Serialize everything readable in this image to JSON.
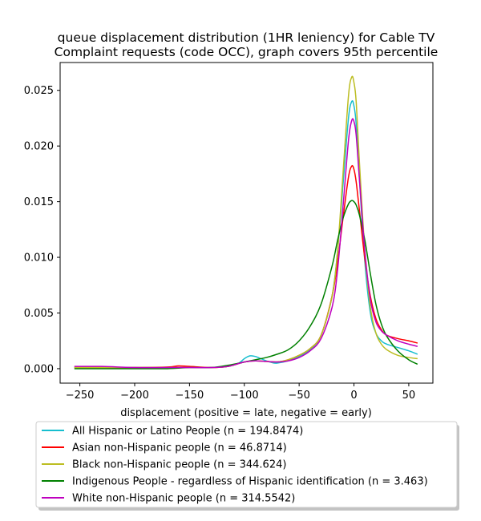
{
  "chart_data": {
    "type": "line",
    "title": [
      "queue displacement distribution (1HR leniency) for Cable TV",
      "Complaint  requests (code OCC), graph covers 95th percentile"
    ],
    "xlabel": "displacement (positive = late, negative = early)",
    "ylabel": "",
    "xlim": [
      -268,
      72
    ],
    "ylim": [
      -0.0013,
      0.0275
    ],
    "xticks": [
      -250,
      -200,
      -150,
      -100,
      -50,
      0,
      50
    ],
    "xtick_labels": [
      "−250",
      "−200",
      "−150",
      "−100",
      "−50",
      "0",
      "50"
    ],
    "yticks": [
      0.0,
      0.005,
      0.01,
      0.015,
      0.02,
      0.025
    ],
    "ytick_labels": [
      "0.000",
      "0.005",
      "0.010",
      "0.015",
      "0.020",
      "0.025"
    ],
    "grid": false,
    "legend_position": "below",
    "series": [
      {
        "name": "All Hispanic or Latino People (n = 194.8474)",
        "color": "#17becf",
        "x": [
          -255,
          -230,
          -200,
          -170,
          -150,
          -130,
          -115,
          -105,
          -100,
          -95,
          -90,
          -85,
          -80,
          -75,
          -70,
          -60,
          -50,
          -40,
          -30,
          -20,
          -15,
          -10,
          -5,
          -2,
          0,
          2,
          5,
          10,
          15,
          20,
          25,
          30,
          40,
          50,
          58
        ],
        "y": [
          0.0001,
          0.0001,
          0.0001,
          0.0001,
          0.0001,
          0.0001,
          0.0002,
          0.0005,
          0.0009,
          0.00115,
          0.0011,
          0.0009,
          0.0007,
          0.00055,
          0.0005,
          0.0007,
          0.0011,
          0.0017,
          0.003,
          0.0065,
          0.0105,
          0.0165,
          0.0225,
          0.024,
          0.0236,
          0.022,
          0.017,
          0.0095,
          0.005,
          0.0032,
          0.0025,
          0.0022,
          0.0019,
          0.0016,
          0.0013
        ]
      },
      {
        "name": "Asian non-Hispanic people (n = 46.8714)",
        "color": "#ff0000",
        "x": [
          -255,
          -230,
          -200,
          -170,
          -160,
          -150,
          -130,
          -115,
          -100,
          -90,
          -80,
          -70,
          -60,
          -50,
          -40,
          -30,
          -20,
          -15,
          -10,
          -5,
          -2,
          0,
          2,
          5,
          10,
          15,
          20,
          25,
          30,
          40,
          50,
          58
        ],
        "y": [
          0.0001,
          0.0001,
          0.0001,
          0.00015,
          0.00025,
          0.0002,
          0.0001,
          0.0002,
          0.0006,
          0.0007,
          0.00065,
          0.0006,
          0.0008,
          0.0012,
          0.0018,
          0.003,
          0.0065,
          0.0095,
          0.0135,
          0.0172,
          0.0182,
          0.0179,
          0.0168,
          0.0142,
          0.0098,
          0.0065,
          0.0045,
          0.0035,
          0.003,
          0.0027,
          0.0025,
          0.0023
        ]
      },
      {
        "name": "Black non-Hispanic people (n = 344.624)",
        "color": "#bcbd22",
        "x": [
          -255,
          -230,
          -200,
          -170,
          -150,
          -130,
          -115,
          -100,
          -90,
          -80,
          -70,
          -60,
          -50,
          -40,
          -30,
          -20,
          -15,
          -10,
          -5,
          -2,
          0,
          2,
          5,
          10,
          15,
          20,
          25,
          30,
          40,
          50,
          58
        ],
        "y": [
          0.0001,
          0.0001,
          0.0001,
          0.0001,
          0.0001,
          0.0001,
          0.0002,
          0.0006,
          0.0007,
          0.00065,
          0.0006,
          0.0008,
          0.0012,
          0.0018,
          0.003,
          0.0065,
          0.0105,
          0.0175,
          0.0245,
          0.0262,
          0.0257,
          0.024,
          0.0185,
          0.0105,
          0.0055,
          0.0032,
          0.0022,
          0.0017,
          0.0012,
          0.001,
          0.0009
        ]
      },
      {
        "name": "Indigenous People - regardless of Hispanic identification (n = 3.463)",
        "color": "#008000",
        "x": [
          -255,
          -230,
          -200,
          -170,
          -150,
          -130,
          -115,
          -100,
          -90,
          -80,
          -70,
          -60,
          -50,
          -40,
          -30,
          -20,
          -15,
          -10,
          -5,
          -2,
          0,
          2,
          5,
          10,
          15,
          20,
          25,
          30,
          40,
          50,
          58
        ],
        "y": [
          0.0,
          0.0,
          0.0,
          0.0,
          0.0001,
          0.0001,
          0.0003,
          0.0006,
          0.0008,
          0.001,
          0.0013,
          0.0017,
          0.0025,
          0.0038,
          0.0058,
          0.0092,
          0.0115,
          0.0135,
          0.0148,
          0.0151,
          0.015,
          0.0147,
          0.0138,
          0.0115,
          0.0085,
          0.0058,
          0.004,
          0.0029,
          0.0016,
          0.0008,
          0.0004
        ]
      },
      {
        "name": "White non-Hispanic people (n = 314.5542)",
        "color": "#bf00bf",
        "x": [
          -255,
          -230,
          -200,
          -170,
          -150,
          -130,
          -115,
          -100,
          -90,
          -80,
          -70,
          -60,
          -50,
          -40,
          -30,
          -20,
          -15,
          -10,
          -5,
          -2,
          0,
          2,
          5,
          10,
          15,
          20,
          25,
          30,
          40,
          50,
          58
        ],
        "y": [
          0.0002,
          0.0002,
          0.0001,
          0.0001,
          0.0001,
          0.0001,
          0.0002,
          0.0006,
          0.0007,
          0.00065,
          0.0006,
          0.0007,
          0.001,
          0.0016,
          0.0027,
          0.0055,
          0.0088,
          0.0145,
          0.0205,
          0.0223,
          0.0222,
          0.021,
          0.017,
          0.0105,
          0.0062,
          0.0042,
          0.0034,
          0.003,
          0.0025,
          0.0022,
          0.002
        ]
      }
    ]
  }
}
